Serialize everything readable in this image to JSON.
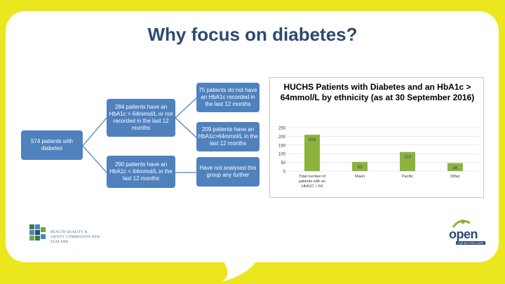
{
  "slide": {
    "title": "Why focus on diabetes?",
    "colors": {
      "background": "#ece61e",
      "box": "#4f81bd",
      "bar": "#8cb43c",
      "title": "#2b4a70"
    }
  },
  "flow": {
    "root": "574 patients with diabetes",
    "left_top": "284 patients have an HbA1c > 64mmol/L or not recorded in the last 12 months",
    "left_bottom": "290 patients have an HbA1c < 64mmol/L in the last 12 months",
    "right_1": "75 patients do not have an HbA1c recorded in the last 12 months",
    "right_2": "209 patients have an HbA1c>64mmol/L in the last 12 months",
    "right_3": "Have not analysed this group any further"
  },
  "chart_data": {
    "type": "bar",
    "title": "HUCHS Patients with Diabetes and an HbA1c > 64mmol/L by ethnicity (as at 30 September 2016)",
    "categories": [
      "Total number of patients with an HbA1C > 64",
      "Maori",
      "Pacific",
      "Other"
    ],
    "values": [
      209,
      53,
      110,
      46
    ],
    "ylim": [
      0,
      250
    ],
    "yticks": [
      "250",
      "200",
      "150",
      "100",
      "50",
      "0"
    ],
    "xlabel": "",
    "ylabel": "",
    "grid": true
  },
  "logos": {
    "left": "HEALTH QUALITY & SAFETY COMMISSION NEW ZEALAND",
    "right": "open",
    "right_sub": "FOR BETTER CARE"
  }
}
